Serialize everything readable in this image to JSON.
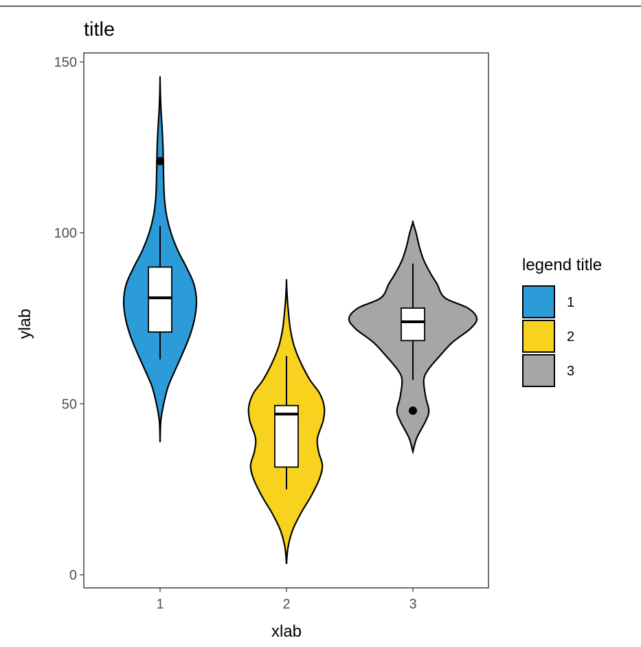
{
  "chart_data": {
    "type": "violin",
    "title": "title",
    "xlabel": "xlab",
    "ylabel": "ylab",
    "categories": [
      "1",
      "2",
      "3"
    ],
    "ylim": [
      -3.5,
      152.5
    ],
    "yticks": [
      0,
      50,
      100,
      150
    ],
    "grid": false,
    "legend": {
      "title": "legend title",
      "position": "right",
      "entries": [
        {
          "label": "1",
          "color": "#2b9cd8"
        },
        {
          "label": "2",
          "color": "#f7d21f"
        },
        {
          "label": "3",
          "color": "#a6a6a6"
        }
      ]
    },
    "series": [
      {
        "category": "1",
        "color": "#2b9cd8",
        "violin_min": 38.8,
        "violin_max": 145,
        "density": [
          [
            38.8,
            0.0
          ],
          [
            45,
            0.02
          ],
          [
            50,
            0.1
          ],
          [
            55,
            0.22
          ],
          [
            60,
            0.42
          ],
          [
            65,
            0.63
          ],
          [
            70,
            0.82
          ],
          [
            75,
            0.95
          ],
          [
            80,
            1.0
          ],
          [
            85,
            0.93
          ],
          [
            90,
            0.72
          ],
          [
            95,
            0.48
          ],
          [
            100,
            0.3
          ],
          [
            105,
            0.18
          ],
          [
            110,
            0.12
          ],
          [
            115,
            0.1
          ],
          [
            120,
            0.09
          ],
          [
            125,
            0.08
          ],
          [
            130,
            0.06
          ],
          [
            135,
            0.03
          ],
          [
            140,
            0.01
          ],
          [
            145,
            0.0
          ]
        ],
        "box": {
          "lower_whisker": 63,
          "q1": 71,
          "median": 81,
          "q3": 90,
          "upper_whisker": 102
        },
        "outliers": [
          121
        ]
      },
      {
        "category": "2",
        "color": "#f7d21f",
        "violin_min": 3.2,
        "violin_max": 85.7,
        "density": [
          [
            3.2,
            0.0
          ],
          [
            8,
            0.04
          ],
          [
            13,
            0.16
          ],
          [
            18,
            0.38
          ],
          [
            23,
            0.65
          ],
          [
            28,
            0.87
          ],
          [
            32,
            0.95
          ],
          [
            36,
            0.85
          ],
          [
            40,
            0.82
          ],
          [
            45,
            0.97
          ],
          [
            49,
            1.0
          ],
          [
            53,
            0.88
          ],
          [
            57,
            0.62
          ],
          [
            62,
            0.38
          ],
          [
            67,
            0.2
          ],
          [
            72,
            0.1
          ],
          [
            77,
            0.05
          ],
          [
            81,
            0.02
          ],
          [
            85.7,
            0.0
          ]
        ],
        "box": {
          "lower_whisker": 25,
          "q1": 31.5,
          "median": 47,
          "q3": 49.5,
          "upper_whisker": 64
        },
        "outliers": []
      },
      {
        "category": "3",
        "color": "#a6a6a6",
        "violin_min": 36,
        "violin_max": 103,
        "density": [
          [
            36,
            0.0
          ],
          [
            40,
            0.06
          ],
          [
            45,
            0.2
          ],
          [
            48,
            0.25
          ],
          [
            52,
            0.2
          ],
          [
            57,
            0.17
          ],
          [
            60,
            0.24
          ],
          [
            64,
            0.42
          ],
          [
            68,
            0.62
          ],
          [
            72,
            0.9
          ],
          [
            75,
            1.0
          ],
          [
            78,
            0.86
          ],
          [
            81,
            0.5
          ],
          [
            85,
            0.38
          ],
          [
            88,
            0.28
          ],
          [
            92,
            0.17
          ],
          [
            96,
            0.1
          ],
          [
            100,
            0.05
          ],
          [
            103,
            0.0
          ]
        ],
        "box": {
          "lower_whisker": 57,
          "q1": 68.5,
          "median": 74,
          "q3": 78,
          "upper_whisker": 91
        },
        "outliers": [
          48
        ]
      }
    ]
  }
}
